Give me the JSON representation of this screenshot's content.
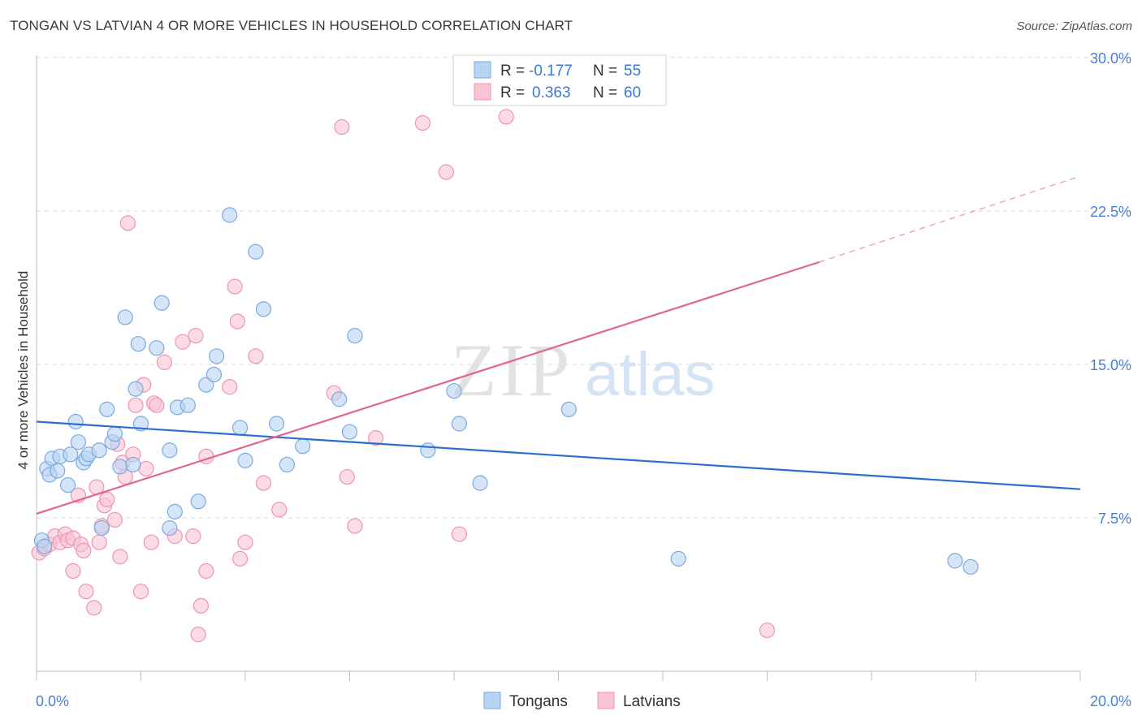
{
  "header": {
    "title": "TONGAN VS LATVIAN 4 OR MORE VEHICLES IN HOUSEHOLD CORRELATION CHART",
    "source": "Source: ZipAtlas.com"
  },
  "watermark": {
    "zip": "ZIP",
    "atlas": "atlas"
  },
  "legend_top": {
    "rows": [
      {
        "r_label": "R =",
        "r_value": "-0.177",
        "n_label": "N =",
        "n_value": "55"
      },
      {
        "r_label": "R =",
        "r_value": "0.363",
        "n_label": "N =",
        "n_value": "60"
      }
    ]
  },
  "colors": {
    "tongans_fill": "#b9d3f3",
    "tongans_stroke": "#7aaae0",
    "tongans_line": "#2b6fce",
    "latvians_fill": "#f8c4d4",
    "latvians_stroke": "#ee94b2",
    "latvians_line": "#e0658f",
    "axis_text": "#4a7fd0",
    "grid": "#d9d9d9"
  },
  "chart_data": {
    "type": "scatter",
    "title": "TONGAN VS LATVIAN 4 OR MORE VEHICLES IN HOUSEHOLD CORRELATION CHART",
    "ylabel": "4 or more Vehicles in Household",
    "xlabel": "",
    "xlim": [
      0,
      20
    ],
    "ylim": [
      0,
      31.5
    ],
    "x_tick_labels": [
      "0.0%",
      "20.0%"
    ],
    "y_tick_labels": [
      "7.5%",
      "15.0%",
      "22.5%",
      "30.0%"
    ],
    "y_ticks": [
      7.5,
      15.0,
      22.5,
      30.0
    ],
    "grid": true,
    "legend_position": "bottom-center",
    "series": [
      {
        "name": "Tongans",
        "r": -0.177,
        "n": 55,
        "trend": {
          "x": [
            0,
            20
          ],
          "y": [
            12.2,
            8.9
          ]
        },
        "points": [
          [
            0.1,
            6.4
          ],
          [
            0.15,
            6.1
          ],
          [
            0.2,
            9.9
          ],
          [
            0.25,
            9.6
          ],
          [
            0.3,
            10.4
          ],
          [
            0.4,
            9.8
          ],
          [
            0.45,
            10.5
          ],
          [
            0.6,
            9.1
          ],
          [
            0.65,
            10.6
          ],
          [
            0.75,
            12.2
          ],
          [
            0.8,
            11.2
          ],
          [
            0.9,
            10.2
          ],
          [
            0.95,
            10.4
          ],
          [
            1.0,
            10.6
          ],
          [
            1.2,
            10.8
          ],
          [
            1.35,
            12.8
          ],
          [
            1.45,
            11.2
          ],
          [
            1.5,
            11.6
          ],
          [
            1.6,
            10.0
          ],
          [
            1.7,
            17.3
          ],
          [
            1.85,
            10.1
          ],
          [
            1.9,
            13.8
          ],
          [
            1.95,
            16.0
          ],
          [
            2.0,
            12.1
          ],
          [
            2.3,
            15.8
          ],
          [
            2.4,
            18.0
          ],
          [
            2.55,
            10.8
          ],
          [
            2.65,
            7.8
          ],
          [
            2.7,
            12.9
          ],
          [
            2.9,
            13.0
          ],
          [
            3.1,
            8.3
          ],
          [
            3.25,
            14.0
          ],
          [
            3.4,
            14.5
          ],
          [
            3.45,
            15.4
          ],
          [
            3.7,
            22.3
          ],
          [
            3.9,
            11.9
          ],
          [
            4.0,
            10.3
          ],
          [
            4.2,
            20.5
          ],
          [
            4.35,
            17.7
          ],
          [
            4.6,
            12.1
          ],
          [
            4.8,
            10.1
          ],
          [
            5.1,
            11.0
          ],
          [
            5.8,
            13.3
          ],
          [
            6.0,
            11.7
          ],
          [
            6.1,
            16.4
          ],
          [
            7.5,
            10.8
          ],
          [
            8.0,
            13.7
          ],
          [
            8.1,
            12.1
          ],
          [
            8.5,
            9.2
          ],
          [
            10.2,
            12.8
          ],
          [
            12.3,
            5.5
          ],
          [
            17.6,
            5.4
          ],
          [
            17.9,
            5.1
          ],
          [
            1.25,
            7.0
          ],
          [
            2.55,
            7.0
          ]
        ]
      },
      {
        "name": "Latvians",
        "r": 0.363,
        "n": 60,
        "trend": {
          "x": [
            0,
            15.0
          ],
          "y": [
            7.7,
            20.0
          ]
        },
        "trend_dashed": {
          "x": [
            15.0,
            20.0
          ],
          "y": [
            20.0,
            24.2
          ]
        },
        "points": [
          [
            0.05,
            5.8
          ],
          [
            0.15,
            6.0
          ],
          [
            0.25,
            6.2
          ],
          [
            0.35,
            6.6
          ],
          [
            0.45,
            6.3
          ],
          [
            0.55,
            6.7
          ],
          [
            0.6,
            6.4
          ],
          [
            0.7,
            6.5
          ],
          [
            0.7,
            4.9
          ],
          [
            0.8,
            8.6
          ],
          [
            0.85,
            6.2
          ],
          [
            0.9,
            5.9
          ],
          [
            0.95,
            3.9
          ],
          [
            1.1,
            3.1
          ],
          [
            1.15,
            9.0
          ],
          [
            1.2,
            6.3
          ],
          [
            1.25,
            7.1
          ],
          [
            1.3,
            8.1
          ],
          [
            1.35,
            8.4
          ],
          [
            1.5,
            7.4
          ],
          [
            1.55,
            11.1
          ],
          [
            1.6,
            5.6
          ],
          [
            1.65,
            10.2
          ],
          [
            1.7,
            9.5
          ],
          [
            1.75,
            21.9
          ],
          [
            1.85,
            10.6
          ],
          [
            1.9,
            13.0
          ],
          [
            2.0,
            3.9
          ],
          [
            2.05,
            14.0
          ],
          [
            2.1,
            9.9
          ],
          [
            2.2,
            6.3
          ],
          [
            2.25,
            13.1
          ],
          [
            2.3,
            13.0
          ],
          [
            2.45,
            15.1
          ],
          [
            2.65,
            6.6
          ],
          [
            2.8,
            16.1
          ],
          [
            3.0,
            6.6
          ],
          [
            3.05,
            16.4
          ],
          [
            3.1,
            1.8
          ],
          [
            3.15,
            3.2
          ],
          [
            3.25,
            10.5
          ],
          [
            3.25,
            4.9
          ],
          [
            3.7,
            13.9
          ],
          [
            3.8,
            18.8
          ],
          [
            3.85,
            17.1
          ],
          [
            3.9,
            5.5
          ],
          [
            4.0,
            6.3
          ],
          [
            4.2,
            15.4
          ],
          [
            4.35,
            9.2
          ],
          [
            4.65,
            7.9
          ],
          [
            5.7,
            13.6
          ],
          [
            5.85,
            26.6
          ],
          [
            5.95,
            9.5
          ],
          [
            6.1,
            7.1
          ],
          [
            6.5,
            11.4
          ],
          [
            7.4,
            26.8
          ],
          [
            7.85,
            24.4
          ],
          [
            8.1,
            6.7
          ],
          [
            9.0,
            27.1
          ],
          [
            14.0,
            2.0
          ]
        ]
      }
    ]
  }
}
